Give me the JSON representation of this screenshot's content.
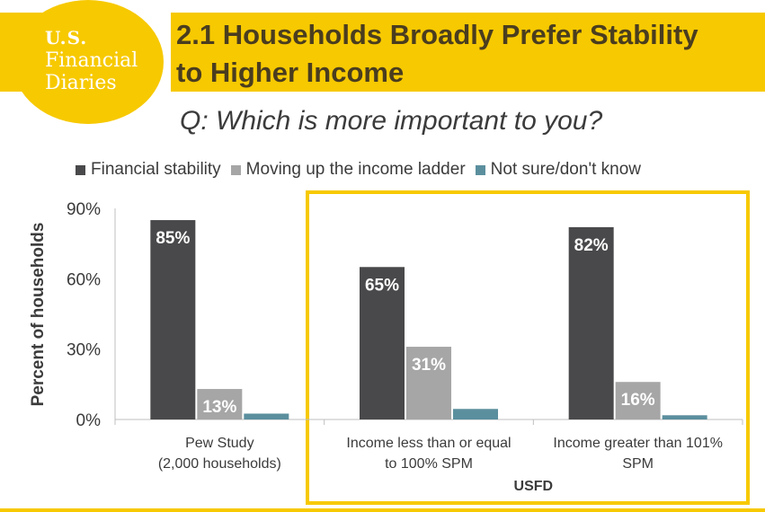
{
  "logo": {
    "line1": "U.S.",
    "line2": "Financial",
    "line3": "Diaries"
  },
  "header": {
    "title_line1": "2.1 Households Broadly Prefer Stability",
    "title_line2": "to Higher Income"
  },
  "colors": {
    "brand_yellow": "#f7c900",
    "stability": "#49494b",
    "moving_up": "#a6a6a6",
    "not_sure": "#5b8f9e"
  },
  "chart_data": {
    "type": "bar",
    "title": "Q: Which is more important to you?",
    "ylabel": "Percent of households",
    "xlabel": "",
    "ylim": [
      0,
      90
    ],
    "yticks": [
      0,
      30,
      60,
      90
    ],
    "tick_labels": [
      "0%",
      "30%",
      "60%",
      "90%"
    ],
    "categories": [
      [
        "Pew Study",
        "(2,000 households)"
      ],
      [
        "Income less than or equal",
        "to 100% SPM"
      ],
      [
        "Income greater than 101%",
        "SPM"
      ]
    ],
    "group_label": "USFD",
    "series": [
      {
        "name": "Financial stability",
        "values": [
          85,
          65,
          82
        ],
        "labels": [
          "85%",
          "65%",
          "82%"
        ]
      },
      {
        "name": "Moving up the income ladder",
        "values": [
          13,
          31,
          16
        ],
        "labels": [
          "13%",
          "31%",
          "16%"
        ]
      },
      {
        "name": "Not sure/don't know",
        "values": [
          2.5,
          4.5,
          1.8
        ],
        "labels": [
          "",
          "",
          ""
        ]
      }
    ],
    "legend_position": "top"
  }
}
